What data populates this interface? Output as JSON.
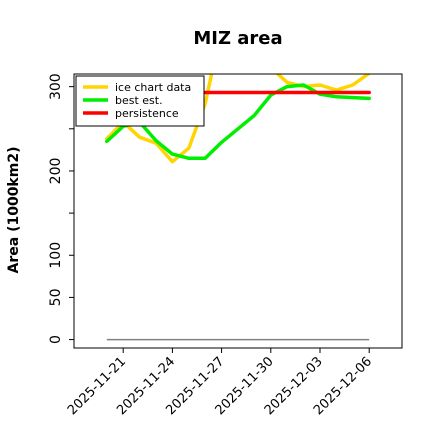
{
  "chart_data": {
    "type": "line",
    "title": "MIZ area",
    "xlabel": "",
    "ylabel": "Area (1000km2)",
    "x_ticks": [
      "2025-11-21",
      "2025-11-24",
      "2025-11-27",
      "2025-11-30",
      "2025-12-03",
      "2025-12-06"
    ],
    "y_ticks": [
      0,
      50,
      100,
      200,
      300
    ],
    "xlim": [
      "2025-11-18",
      "2025-12-08"
    ],
    "ylim": [
      -10,
      315
    ],
    "grid": false,
    "legend_position": "top-left",
    "baseline": {
      "y": 0,
      "color": "#808080"
    },
    "series": [
      {
        "name": "ice chart data",
        "color": "#ffd400",
        "points": [
          [
            "2025-11-20",
            238
          ],
          [
            "2025-11-21",
            258
          ],
          [
            "2025-11-22",
            240
          ],
          [
            "2025-11-23",
            233
          ],
          [
            "2025-11-24",
            211
          ],
          [
            "2025-11-25",
            227
          ],
          [
            "2025-11-26",
            280
          ],
          [
            "2025-11-27",
            370
          ]
        ],
        "points_tail": [
          [
            "2025-11-29",
            340
          ],
          [
            "2025-12-01",
            305
          ],
          [
            "2025-12-02",
            300
          ],
          [
            "2025-12-03",
            302
          ],
          [
            "2025-12-04",
            296
          ],
          [
            "2025-12-05",
            302
          ],
          [
            "2025-12-06",
            316
          ]
        ]
      },
      {
        "name": "best est.",
        "color": "#00ee00",
        "points": [
          [
            "2025-11-20",
            235
          ],
          [
            "2025-11-21",
            253
          ],
          [
            "2025-11-22",
            258
          ],
          [
            "2025-11-23",
            236
          ],
          [
            "2025-11-24",
            220
          ],
          [
            "2025-11-25",
            215
          ],
          [
            "2025-11-26",
            215
          ],
          [
            "2025-11-27",
            234
          ],
          [
            "2025-11-28",
            250
          ],
          [
            "2025-11-29",
            266
          ],
          [
            "2025-11-30",
            290
          ],
          [
            "2025-12-01",
            300
          ],
          [
            "2025-12-02",
            302
          ],
          [
            "2025-12-03",
            291
          ],
          [
            "2025-12-04",
            288
          ],
          [
            "2025-12-05",
            287
          ],
          [
            "2025-12-06",
            286
          ]
        ]
      },
      {
        "name": "persistence",
        "color": "#ff0000",
        "points": [
          [
            "2025-11-26",
            293
          ],
          [
            "2025-12-06",
            293
          ]
        ]
      }
    ]
  }
}
